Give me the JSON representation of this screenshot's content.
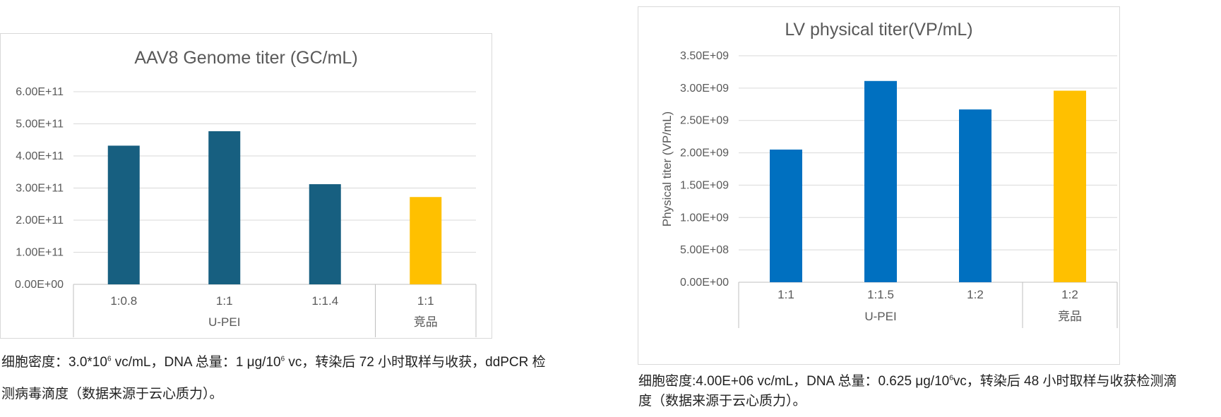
{
  "charts": [
    {
      "id": "left",
      "chart_data": {
        "type": "bar",
        "title": "AAV8 Genome titer (GC/mL)",
        "ylabel": "",
        "ylim": [
          0,
          600000000000
        ],
        "ytick_values": [
          0,
          100000000000,
          200000000000,
          300000000000,
          400000000000,
          500000000000,
          600000000000
        ],
        "ytick_labels": [
          "0.00E+00",
          "1.00E+11",
          "2.00E+11",
          "3.00E+11",
          "4.00E+11",
          "5.00E+11",
          "6.00E+11"
        ],
        "categories": [
          "1:0.8",
          "1:1",
          "1:1.4",
          "1:1"
        ],
        "values": [
          432000000000,
          477000000000,
          312000000000,
          272000000000
        ],
        "bar_colors": [
          "#175F80",
          "#175F80",
          "#175F80",
          "#FFC000"
        ],
        "groups": [
          {
            "label": "U-PEI",
            "categories": [
              "1:0.8",
              "1:1",
              "1:1.4"
            ]
          },
          {
            "label": "竞品",
            "categories": [
              "1:1"
            ]
          }
        ],
        "grid": true,
        "legend": "none"
      }
    },
    {
      "id": "right",
      "chart_data": {
        "type": "bar",
        "title": "LV physical titer(VP/mL)",
        "ylabel": "Physical titer (VP/mL)",
        "ylim": [
          0,
          3500000000
        ],
        "ytick_values": [
          0,
          500000000,
          1000000000,
          1500000000,
          2000000000,
          2500000000,
          3000000000,
          3500000000
        ],
        "ytick_labels": [
          "0.00E+00",
          "5.00E+08",
          "1.00E+09",
          "1.50E+09",
          "2.00E+09",
          "2.50E+09",
          "3.00E+09",
          "3.50E+09"
        ],
        "categories": [
          "1:1",
          "1:1.5",
          "1:2",
          "1:2"
        ],
        "values": [
          2050000000,
          3110000000,
          2670000000,
          2960000000
        ],
        "bar_colors": [
          "#0070C0",
          "#0070C0",
          "#0070C0",
          "#FFC000"
        ],
        "groups": [
          {
            "label": "U-PEI",
            "categories": [
              "1:1",
              "1:1.5",
              "1:2"
            ]
          },
          {
            "label": "竞品",
            "categories": [
              "1:2"
            ]
          }
        ],
        "grid": true,
        "legend": "none"
      }
    }
  ],
  "captions": {
    "left": {
      "line1_pre": "细胞密度：3.0*10",
      "line1_sup": "6",
      "line1_post": " vc/mL，DNA 总量：1 μg/10",
      "line1_sup2": "6",
      "line1_end": " vc，转染后 72 小时取样与收获，ddPCR 检",
      "line2": "测病毒滴度（数据来源于云心质力）。"
    },
    "right": {
      "line1_pre": "细胞密度:4.00E+06 vc/mL，DNA 总量：0.625 μg/10",
      "line1_sup": "6",
      "line1_post": "vc，转染后 48 小时取样与收获检测滴",
      "line2": "度（数据来源于云心质力）。"
    }
  }
}
